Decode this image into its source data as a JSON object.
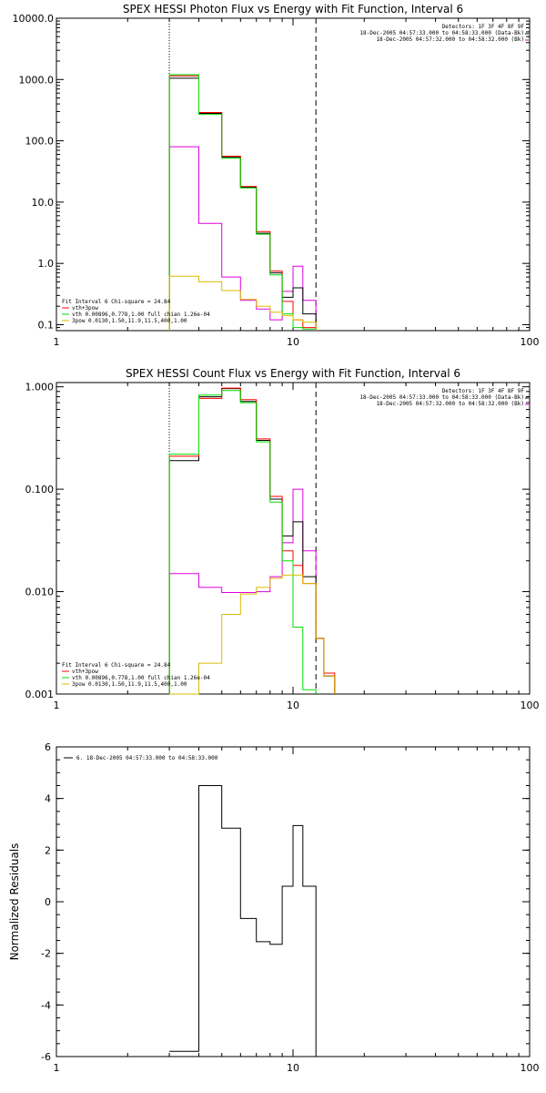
{
  "colors": {
    "black": "#000000",
    "red": "#ff0000",
    "green": "#00dd00",
    "magenta": "#dd00dd",
    "yellow": "#ddbb00"
  },
  "chart_data": [
    {
      "type": "line",
      "title": "SPEX HESSI Photon Flux vs Energy with Fit Function, Interval 6",
      "xscale": "log",
      "yscale": "log",
      "xlim": [
        1,
        100
      ],
      "ylim": [
        0.08,
        10000
      ],
      "x_ticks": [
        "1",
        "10",
        "100"
      ],
      "y_ticks": [
        "0.1",
        "1.0",
        "10.0",
        "100.0",
        "1000.0",
        "10000.0"
      ],
      "vlines": [
        {
          "x": 3.0,
          "style": "dotted"
        },
        {
          "x": 12.5,
          "style": "dashed"
        }
      ],
      "info_lines": [
        "Detectors: 1F 3F 4F 8F 9F",
        "18-Dec-2005 04:57:33.000 to 04:58:33.000 (Data-Bk)",
        "18-Dec-2005 04:57:32.000 to 04:58:32.000 (Bk)"
      ],
      "fit_lines": [
        "Fit Interval 6   Chi-square = 24.84",
        "vth+3pow",
        "vth 0.00896,0.778,1.00  full chian 1.26e-04",
        "3pow 0.0130,1.50,11.9,11.5,400,1.00"
      ],
      "edges": [
        3.0,
        4.0,
        5.0,
        6.0,
        7.0,
        8.0,
        9.0,
        10.0,
        11.0,
        12.5
      ],
      "series": [
        {
          "color": "magenta",
          "values": [
            80,
            4.5,
            0.6,
            0.25,
            0.18,
            0.12,
            0.35,
            0.9,
            0.25
          ]
        },
        {
          "color": "black",
          "values": [
            1050,
            280,
            54,
            17.5,
            3.1,
            0.7,
            0.28,
            0.4,
            0.15
          ]
        },
        {
          "color": "red",
          "values": [
            1150,
            290,
            56,
            18,
            3.3,
            0.75,
            0.24,
            0.12,
            0.09
          ]
        },
        {
          "color": "green",
          "values": [
            1200,
            270,
            52,
            17,
            3.0,
            0.65,
            0.15,
            0.09,
            0.085
          ]
        },
        {
          "color": "yellow",
          "values": [
            0.62,
            0.5,
            0.36,
            0.26,
            0.2,
            0.16,
            0.14,
            0.12,
            0.11
          ]
        }
      ]
    },
    {
      "type": "line",
      "title": "SPEX HESSI Count Flux vs Energy with Fit Function, Interval 6",
      "xscale": "log",
      "yscale": "log",
      "xlim": [
        1,
        100
      ],
      "ylim": [
        0.001,
        1.1
      ],
      "x_ticks": [
        "1",
        "10",
        "100"
      ],
      "y_ticks": [
        "0.001",
        "0.010",
        "0.100",
        "1.000"
      ],
      "vlines": [
        {
          "x": 3.0,
          "style": "dotted"
        },
        {
          "x": 12.5,
          "style": "dashed"
        }
      ],
      "info_lines": [
        "Detectors: 1F 3F 4F 8F 9F",
        "18-Dec-2005 04:57:33.000 to 04:58:33.000 (Data-Bk)",
        "18-Dec-2005 04:57:32.000 to 04:58:32.000 (Bk)"
      ],
      "fit_lines": [
        "Fit Interval 6   Chi-square = 24.84",
        "vth+3pow",
        "vth 0.00896,0.778,1.00  full chian 1.26e-04",
        "3pow 0.0130,1.50,11.9,11.5,400,1.00"
      ],
      "edges": [
        3.0,
        4.0,
        5.0,
        6.0,
        7.0,
        8.0,
        9.0,
        10.0,
        11.0,
        12.5,
        13.5,
        15.0
      ],
      "series": [
        {
          "color": "magenta",
          "values": [
            0.015,
            0.011,
            0.0098,
            0.0098,
            0.01,
            0.014,
            0.03,
            0.1,
            0.025,
            0.0035,
            0.0015
          ]
        },
        {
          "color": "black",
          "values": [
            0.19,
            0.8,
            0.96,
            0.72,
            0.3,
            0.08,
            0.035,
            0.048,
            0.014,
            0.0035,
            0.0015
          ]
        },
        {
          "color": "red",
          "values": [
            0.21,
            0.77,
            0.97,
            0.75,
            0.31,
            0.085,
            0.025,
            0.018,
            0.012,
            0.0035,
            0.0016
          ]
        },
        {
          "color": "green",
          "values": [
            0.22,
            0.83,
            0.92,
            0.7,
            0.29,
            0.075,
            0.02,
            0.0045,
            0.0011
          ]
        },
        {
          "color": "yellow",
          "values": [
            0.001,
            0.002,
            0.006,
            0.0095,
            0.011,
            0.0135,
            0.0145,
            0.0145,
            0.012,
            0.0035,
            0.0015
          ]
        }
      ]
    },
    {
      "type": "line",
      "title": "",
      "ylabel": "Normalized Residuals",
      "xscale": "log",
      "yscale": "linear",
      "xlim": [
        1,
        100
      ],
      "ylim": [
        -6,
        6
      ],
      "x_ticks": [
        "1",
        "10",
        "100"
      ],
      "y_ticks": [
        "-6",
        "-4",
        "-2",
        "0",
        "2",
        "4",
        "6"
      ],
      "legend": "6. 18-Dec-2005 04:57:33.000 to 04:58:33.000",
      "edges": [
        3.0,
        4.0,
        5.0,
        6.0,
        7.0,
        8.0,
        9.0,
        10.0,
        11.0,
        12.5
      ],
      "series": [
        {
          "color": "black",
          "values": [
            -5.8,
            4.5,
            2.85,
            -0.65,
            -1.55,
            -1.65,
            0.6,
            2.95,
            0.6
          ]
        }
      ]
    }
  ]
}
